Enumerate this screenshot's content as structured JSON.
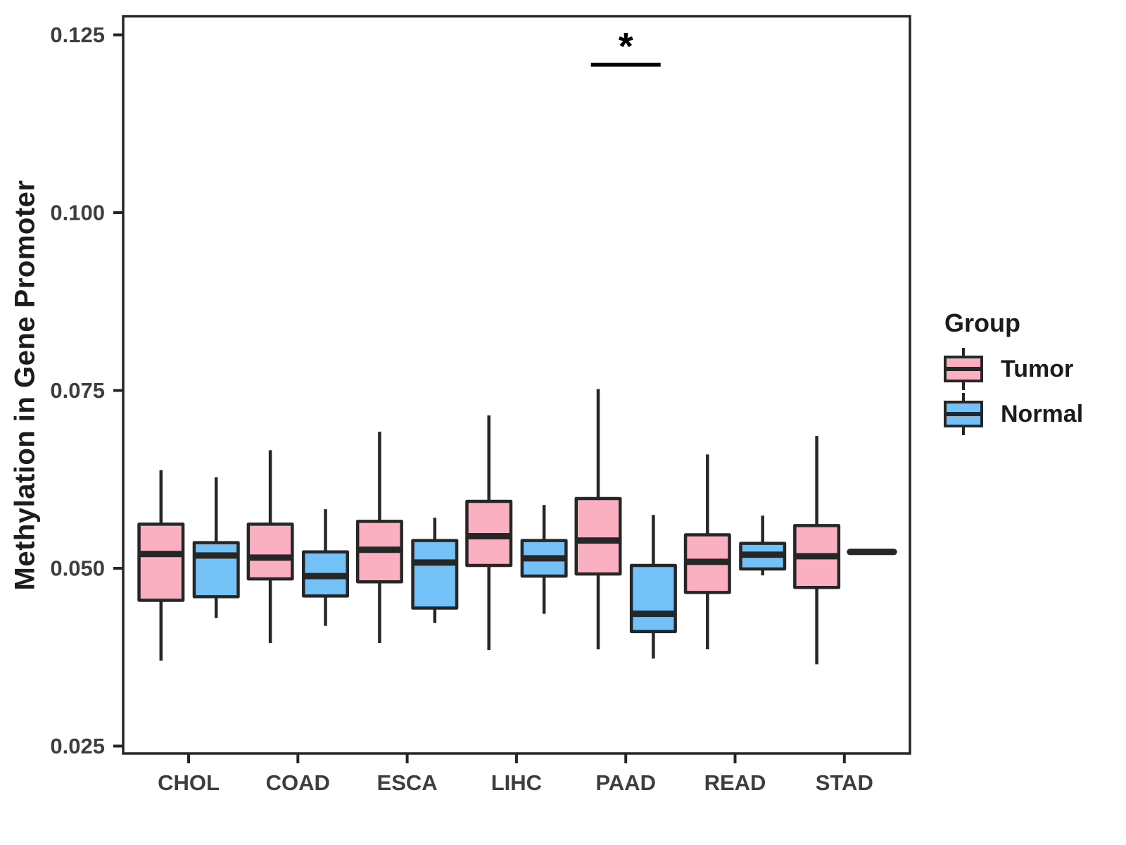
{
  "figure": {
    "background": "#ffffff"
  },
  "colors": {
    "box_outline": "#262626",
    "axis_text": "#3e3e3e",
    "title_text": "#1c1c1c",
    "tumor_fill": "#FAB0C1",
    "normal_fill": "#74C1F7"
  },
  "chart_data": {
    "type": "boxplot",
    "orientation": "vertical",
    "title": "",
    "xlabel": "",
    "ylabel": "Methylation in Gene Promoter",
    "ylim": [
      0.025,
      0.125
    ],
    "grid": false,
    "panel_border": true,
    "yticks": [
      {
        "value": 0.125,
        "label": "0.125"
      },
      {
        "value": 0.1,
        "label": "0.100"
      },
      {
        "value": 0.075,
        "label": "0.075"
      },
      {
        "value": 0.05,
        "label": "0.050"
      },
      {
        "value": 0.025,
        "label": "0.025"
      }
    ],
    "categories": [
      "CHOL",
      "COAD",
      "ESCA",
      "LIHC",
      "PAAD",
      "READ",
      "STAD"
    ],
    "legend": {
      "title": "Group",
      "position": "right",
      "entries": [
        {
          "label": "Tumor",
          "color": "#FAB0C1"
        },
        {
          "label": "Normal",
          "color": "#74C1F7"
        }
      ]
    },
    "series": [
      {
        "name": "Tumor",
        "color": "#FAB0C1",
        "boxes": [
          {
            "category": "CHOL",
            "whisker_low": 0.037,
            "q1": 0.0455,
            "median": 0.052,
            "q3": 0.0562,
            "whisker_high": 0.0638
          },
          {
            "category": "COAD",
            "whisker_low": 0.0395,
            "q1": 0.0485,
            "median": 0.0515,
            "q3": 0.0562,
            "whisker_high": 0.0666
          },
          {
            "category": "ESCA",
            "whisker_low": 0.0395,
            "q1": 0.0481,
            "median": 0.0526,
            "q3": 0.0566,
            "whisker_high": 0.0692
          },
          {
            "category": "LIHC",
            "whisker_low": 0.0385,
            "q1": 0.0504,
            "median": 0.0545,
            "q3": 0.0594,
            "whisker_high": 0.0715
          },
          {
            "category": "PAAD",
            "whisker_low": 0.0386,
            "q1": 0.0492,
            "median": 0.0539,
            "q3": 0.0598,
            "whisker_high": 0.0752
          },
          {
            "category": "READ",
            "whisker_low": 0.0386,
            "q1": 0.0466,
            "median": 0.0509,
            "q3": 0.0547,
            "whisker_high": 0.066
          },
          {
            "category": "STAD",
            "whisker_low": 0.0365,
            "q1": 0.0473,
            "median": 0.0517,
            "q3": 0.056,
            "whisker_high": 0.0686
          }
        ]
      },
      {
        "name": "Normal",
        "color": "#74C1F7",
        "boxes": [
          {
            "category": "CHOL",
            "whisker_low": 0.043,
            "q1": 0.046,
            "median": 0.0518,
            "q3": 0.0536,
            "whisker_high": 0.0628
          },
          {
            "category": "COAD",
            "whisker_low": 0.0419,
            "q1": 0.0461,
            "median": 0.0489,
            "q3": 0.0523,
            "whisker_high": 0.0583
          },
          {
            "category": "ESCA",
            "whisker_low": 0.0423,
            "q1": 0.0444,
            "median": 0.0508,
            "q3": 0.0539,
            "whisker_high": 0.0571
          },
          {
            "category": "LIHC",
            "whisker_low": 0.0436,
            "q1": 0.0489,
            "median": 0.0514,
            "q3": 0.0539,
            "whisker_high": 0.0589
          },
          {
            "category": "PAAD",
            "whisker_low": 0.0373,
            "q1": 0.0411,
            "median": 0.0436,
            "q3": 0.0504,
            "whisker_high": 0.0575
          },
          {
            "category": "READ",
            "whisker_low": 0.049,
            "q1": 0.0499,
            "median": 0.0519,
            "q3": 0.0535,
            "whisker_high": 0.0574
          },
          {
            "category": "STAD",
            "median": 0.0523,
            "single_value": true
          }
        ]
      }
    ],
    "annotations": [
      {
        "type": "significance_bracket",
        "category": "PAAD",
        "between": [
          "Tumor",
          "Normal"
        ],
        "label": "*",
        "line_y": 0.1208,
        "label_y": 0.1237
      }
    ]
  }
}
